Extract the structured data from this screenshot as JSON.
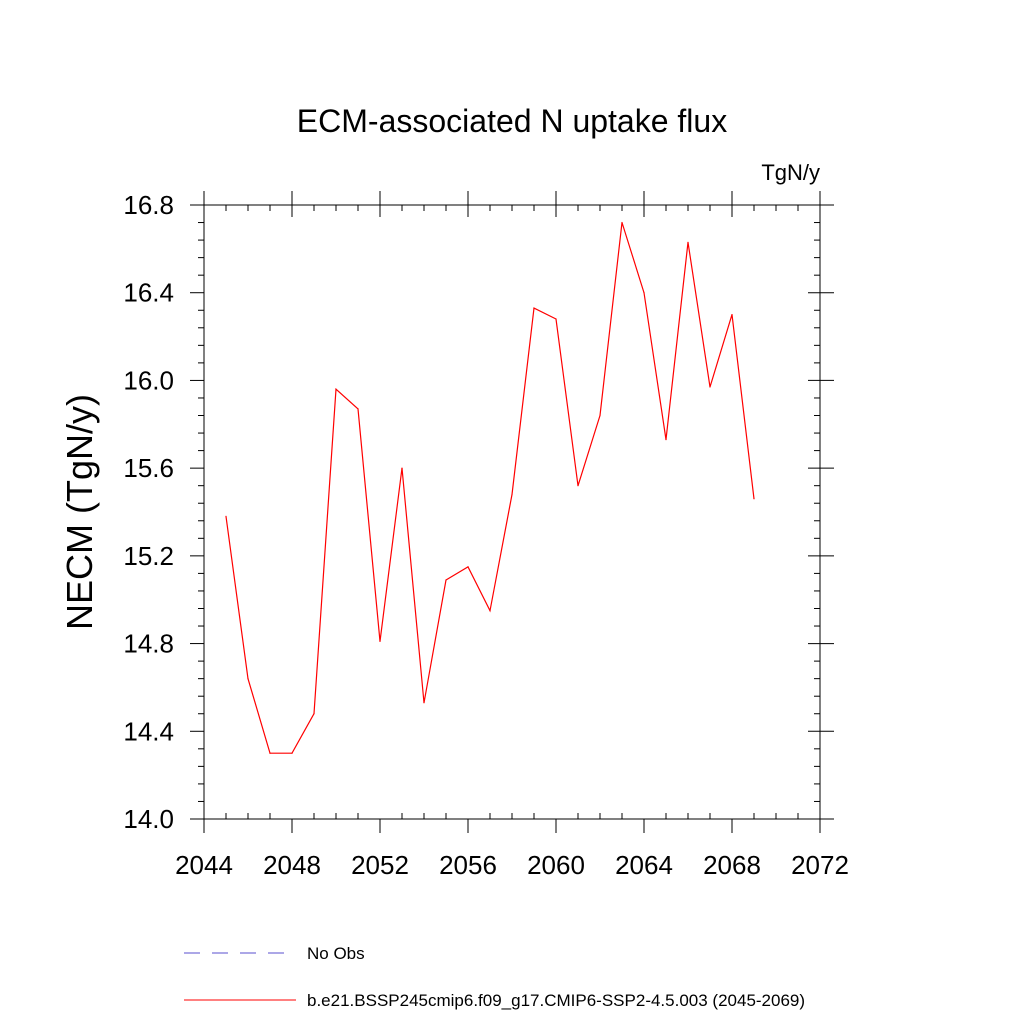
{
  "chart_data": {
    "type": "line",
    "title": "ECM-associated N uptake flux",
    "units": "TgN/y",
    "xlabel": "",
    "ylabel": "NECM  (TgN/y)",
    "xlim": [
      2044,
      2072
    ],
    "ylim": [
      14.0,
      16.8
    ],
    "x_ticks": [
      2044,
      2048,
      2052,
      2056,
      2060,
      2064,
      2068,
      2072
    ],
    "y_ticks": [
      "14.0",
      "14.4",
      "14.8",
      "15.2",
      "15.6",
      "16.0",
      "16.4",
      "16.8"
    ],
    "x_minor_step": 1,
    "y_minor_step": 0.08,
    "grid": false,
    "series": [
      {
        "name": "b.e21.BSSP245cmip6.f09_g17.CMIP6-SSP2-4.5.003 (2045-2069)",
        "color": "#ff0000",
        "dash": "solid",
        "x": [
          2045,
          2046,
          2047,
          2048,
          2049,
          2050,
          2051,
          2052,
          2053,
          2054,
          2055,
          2056,
          2057,
          2058,
          2059,
          2060,
          2061,
          2062,
          2063,
          2064,
          2065,
          2066,
          2067,
          2068,
          2069
        ],
        "values": [
          15.38,
          14.64,
          14.3,
          14.3,
          14.48,
          15.96,
          15.87,
          14.81,
          15.6,
          14.53,
          15.09,
          15.15,
          14.95,
          15.48,
          16.33,
          16.28,
          15.52,
          15.84,
          16.72,
          16.4,
          15.73,
          16.63,
          15.97,
          16.3,
          15.46
        ]
      }
    ],
    "legend": [
      {
        "label": "No Obs",
        "color": "#5a4fcf",
        "dash": "dashed"
      },
      {
        "label": "b.e21.BSSP245cmip6.f09_g17.CMIP6-SSP2-4.5.003 (2045-2069)",
        "color": "#ff0000",
        "dash": "solid"
      }
    ],
    "legend_position": "bottom"
  }
}
